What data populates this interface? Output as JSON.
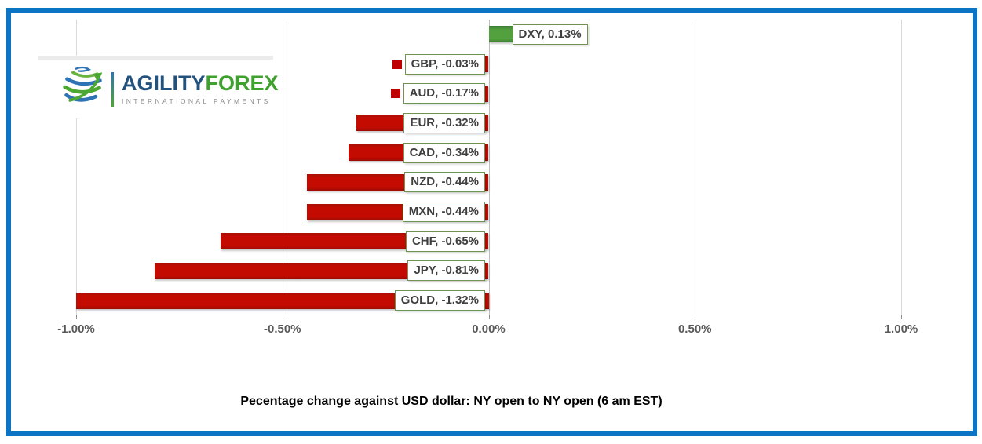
{
  "frame": {
    "border_color": "#0b74c4"
  },
  "logo": {
    "brand_primary": "AGILITY",
    "brand_secondary": "FOREX",
    "tagline": "INTERNATIONAL PAYMENTS",
    "primary_color": "#24527e",
    "secondary_color": "#3fa12e"
  },
  "chart_data": {
    "type": "bar",
    "orientation": "horizontal",
    "title": "Pecentage change against USD dollar: NY open to NY open  (6 am EST)",
    "categories": [
      "DXY",
      "GBP",
      "AUD",
      "EUR",
      "CAD",
      "NZD",
      "MXN",
      "CHF",
      "JPY",
      "GOLD"
    ],
    "values": [
      0.13,
      -0.03,
      -0.17,
      -0.32,
      -0.34,
      -0.44,
      -0.44,
      -0.65,
      -0.81,
      -1.32
    ],
    "data_labels": [
      "DXY, 0.13%",
      "GBP, -0.03%",
      "AUD, -0.17%",
      "EUR, -0.32%",
      "CAD, -0.34%",
      "NZD, -0.44%",
      "MXN, -0.44%",
      "CHF, -0.65%",
      "JPY, -0.81%",
      "GOLD, -1.32%"
    ],
    "x_ticks": [
      "-1.00%",
      "-0.50%",
      "0.00%",
      "0.50%",
      "1.00%"
    ],
    "x_tick_values": [
      -1.0,
      -0.5,
      0.0,
      0.5,
      1.0
    ],
    "xlim": [
      -1.0,
      1.0
    ],
    "bars_clipped_at_axis_min": [
      "GOLD"
    ],
    "grid": true,
    "legend": "none",
    "positive_color": "#4f9c3f",
    "negative_color": "#c00000",
    "label_border_color": "#6f9351",
    "data_label_style": "boxed-with-legend-key"
  }
}
